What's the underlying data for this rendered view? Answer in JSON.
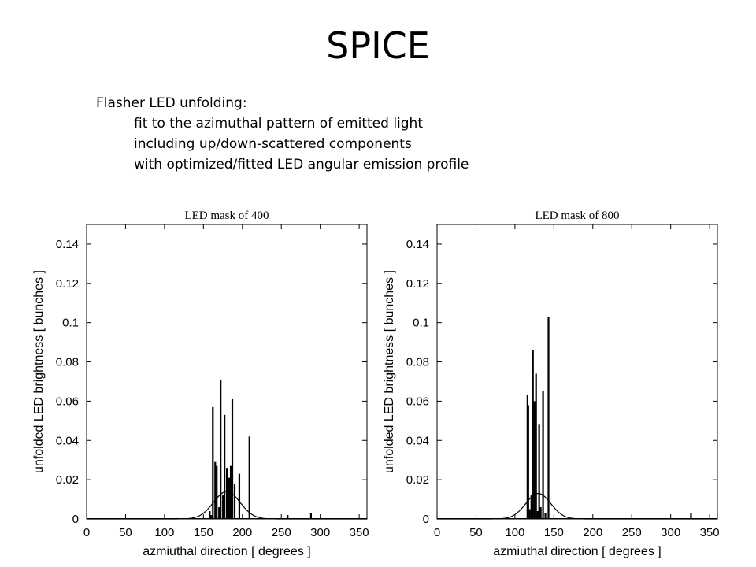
{
  "slide": {
    "title": "SPICE",
    "lead": "Flasher LED unfolding:",
    "bullets": [
      "fit to the azimuthal pattern of emitted light",
      "including up/down-scattered components",
      "with optimized/fitted LED angular emission profile"
    ]
  },
  "chart_data": [
    {
      "type": "bar",
      "title": "LED mask of 400",
      "xlabel": "azmiuthal direction [ degrees ]",
      "ylabel": "unfolded LED brightness [ bunches ]",
      "xlim": [
        0,
        360
      ],
      "ylim": [
        0,
        0.15
      ],
      "xticks": [
        0,
        50,
        100,
        150,
        200,
        250,
        300,
        350
      ],
      "yticks": [
        0,
        0.02,
        0.04,
        0.06,
        0.08,
        0.1,
        0.12,
        0.14
      ],
      "ytick_labels": [
        "0",
        "0.02",
        "0.04",
        "0.06",
        "0.08",
        "0.1",
        "0.12",
        "0.14"
      ],
      "grid": false,
      "x": [
        158,
        160,
        162,
        165,
        167,
        170,
        172,
        175,
        177,
        180,
        183,
        185,
        187,
        190,
        196,
        209,
        258,
        288
      ],
      "values": [
        0.004,
        0.002,
        0.057,
        0.029,
        0.027,
        0.006,
        0.071,
        0.012,
        0.053,
        0.026,
        0.021,
        0.027,
        0.061,
        0.018,
        0.023,
        0.042,
        0.002,
        0.003
      ],
      "fit_curve": {
        "type": "gaussian",
        "peak": 0.014,
        "center": 180,
        "sigma": 17
      }
    },
    {
      "type": "bar",
      "title": "LED mask of 800",
      "xlabel": "azmiuthal direction [ degrees ]",
      "ylabel": "unfolded LED brightness [ bunches ]",
      "xlim": [
        0,
        360
      ],
      "ylim": [
        0,
        0.15
      ],
      "xticks": [
        0,
        50,
        100,
        150,
        200,
        250,
        300,
        350
      ],
      "yticks": [
        0,
        0.02,
        0.04,
        0.06,
        0.08,
        0.1,
        0.12,
        0.14
      ],
      "ytick_labels": [
        "0",
        "0.02",
        "0.04",
        "0.06",
        "0.08",
        "0.1",
        "0.12",
        "0.14"
      ],
      "grid": false,
      "x": [
        116,
        117,
        119,
        121,
        123,
        125,
        127,
        129,
        131,
        133,
        136,
        139,
        143,
        326
      ],
      "values": [
        0.063,
        0.058,
        0.005,
        0.012,
        0.086,
        0.06,
        0.074,
        0.004,
        0.048,
        0.006,
        0.065,
        0.003,
        0.103,
        0.003
      ],
      "fit_curve": {
        "type": "gaussian",
        "peak": 0.013,
        "center": 130,
        "sigma": 16
      }
    }
  ]
}
